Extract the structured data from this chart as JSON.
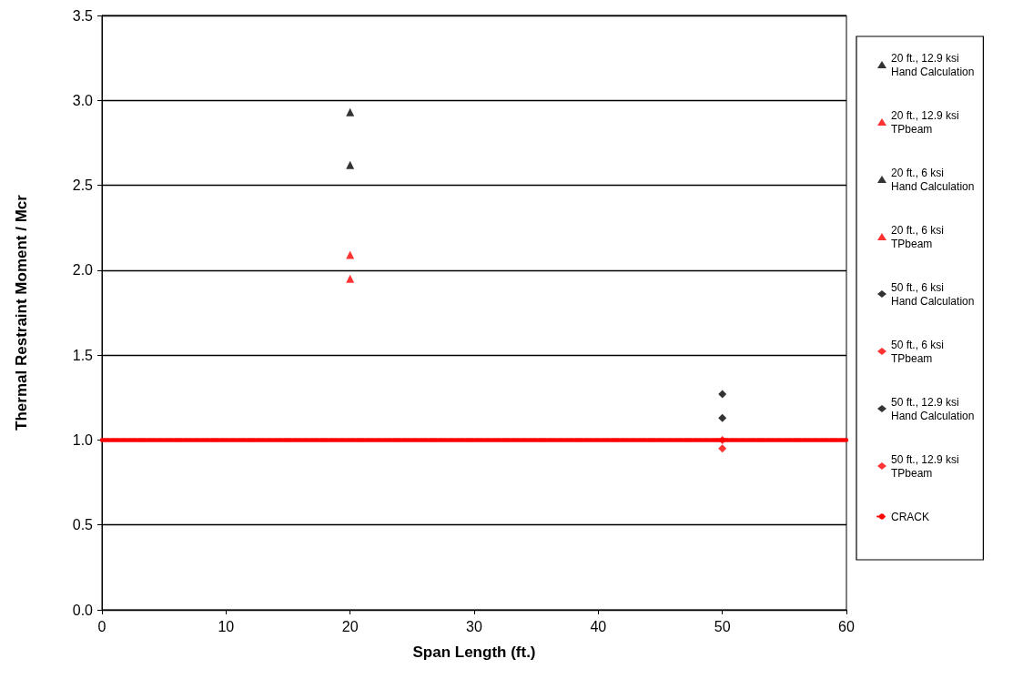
{
  "chart_data": {
    "type": "scatter",
    "xlabel": "Span Length (ft.)",
    "ylabel": "Thermal Restraint Moment / Mcr",
    "xlim": [
      0,
      60
    ],
    "xticks": [
      0,
      10,
      20,
      30,
      40,
      50,
      60
    ],
    "ylim": [
      0,
      3.5
    ],
    "yticks": [
      {
        "value": 0,
        "label": "0.0"
      },
      {
        "value": 0.5,
        "label": "0.5"
      },
      {
        "value": 1,
        "label": "1.0"
      },
      {
        "value": 1.5,
        "label": "1.5"
      },
      {
        "value": 2,
        "label": "2.0"
      },
      {
        "value": 2.5,
        "label": "2.5"
      },
      {
        "value": 3,
        "label": "3.0"
      },
      {
        "value": 3.5,
        "label": "3.5"
      }
    ],
    "grid": "y",
    "legend": "right",
    "series": [
      {
        "name": "20 ft., 12.9 ksi\nHand Calculation",
        "color": "#000000",
        "marker": "triangle",
        "x": [
          20
        ],
        "values": [
          2.93
        ]
      },
      {
        "name": "20 ft., 12.9 ksi\nTPbeam",
        "color": "#ff0000",
        "marker": "triangle",
        "x": [
          20
        ],
        "values": [
          2.09
        ]
      },
      {
        "name": "20 ft., 6 ksi\nHand Calculation",
        "color": "#000000",
        "marker": "triangle",
        "x": [
          20
        ],
        "values": [
          2.62
        ]
      },
      {
        "name": "20 ft., 6 ksi\nTPbeam",
        "color": "#ff0000",
        "marker": "triangle",
        "x": [
          20
        ],
        "values": [
          1.95
        ]
      },
      {
        "name": "50 ft., 6 ksi\nHand Calculation",
        "color": "#000000",
        "marker": "diamond",
        "x": [
          50
        ],
        "values": [
          1.13
        ]
      },
      {
        "name": "50 ft., 6 ksi\nTPbeam",
        "color": "#ff0000",
        "marker": "diamond",
        "x": [
          50
        ],
        "values": [
          0.95
        ]
      },
      {
        "name": "50 ft., 12.9 ksi\nHand Calculation",
        "color": "#000000",
        "marker": "diamond",
        "x": [
          50
        ],
        "values": [
          1.27
        ]
      },
      {
        "name": "50 ft., 12.9 ksi\nTPbeam",
        "color": "#ff0000",
        "marker": "diamond",
        "x": [
          50
        ],
        "values": [
          1.0
        ]
      },
      {
        "name": "CRACK",
        "type": "line",
        "color": "#ff0000",
        "marker": "none",
        "line_style": "dashed",
        "x": [
          0,
          60
        ],
        "values": [
          1,
          1
        ]
      }
    ]
  }
}
